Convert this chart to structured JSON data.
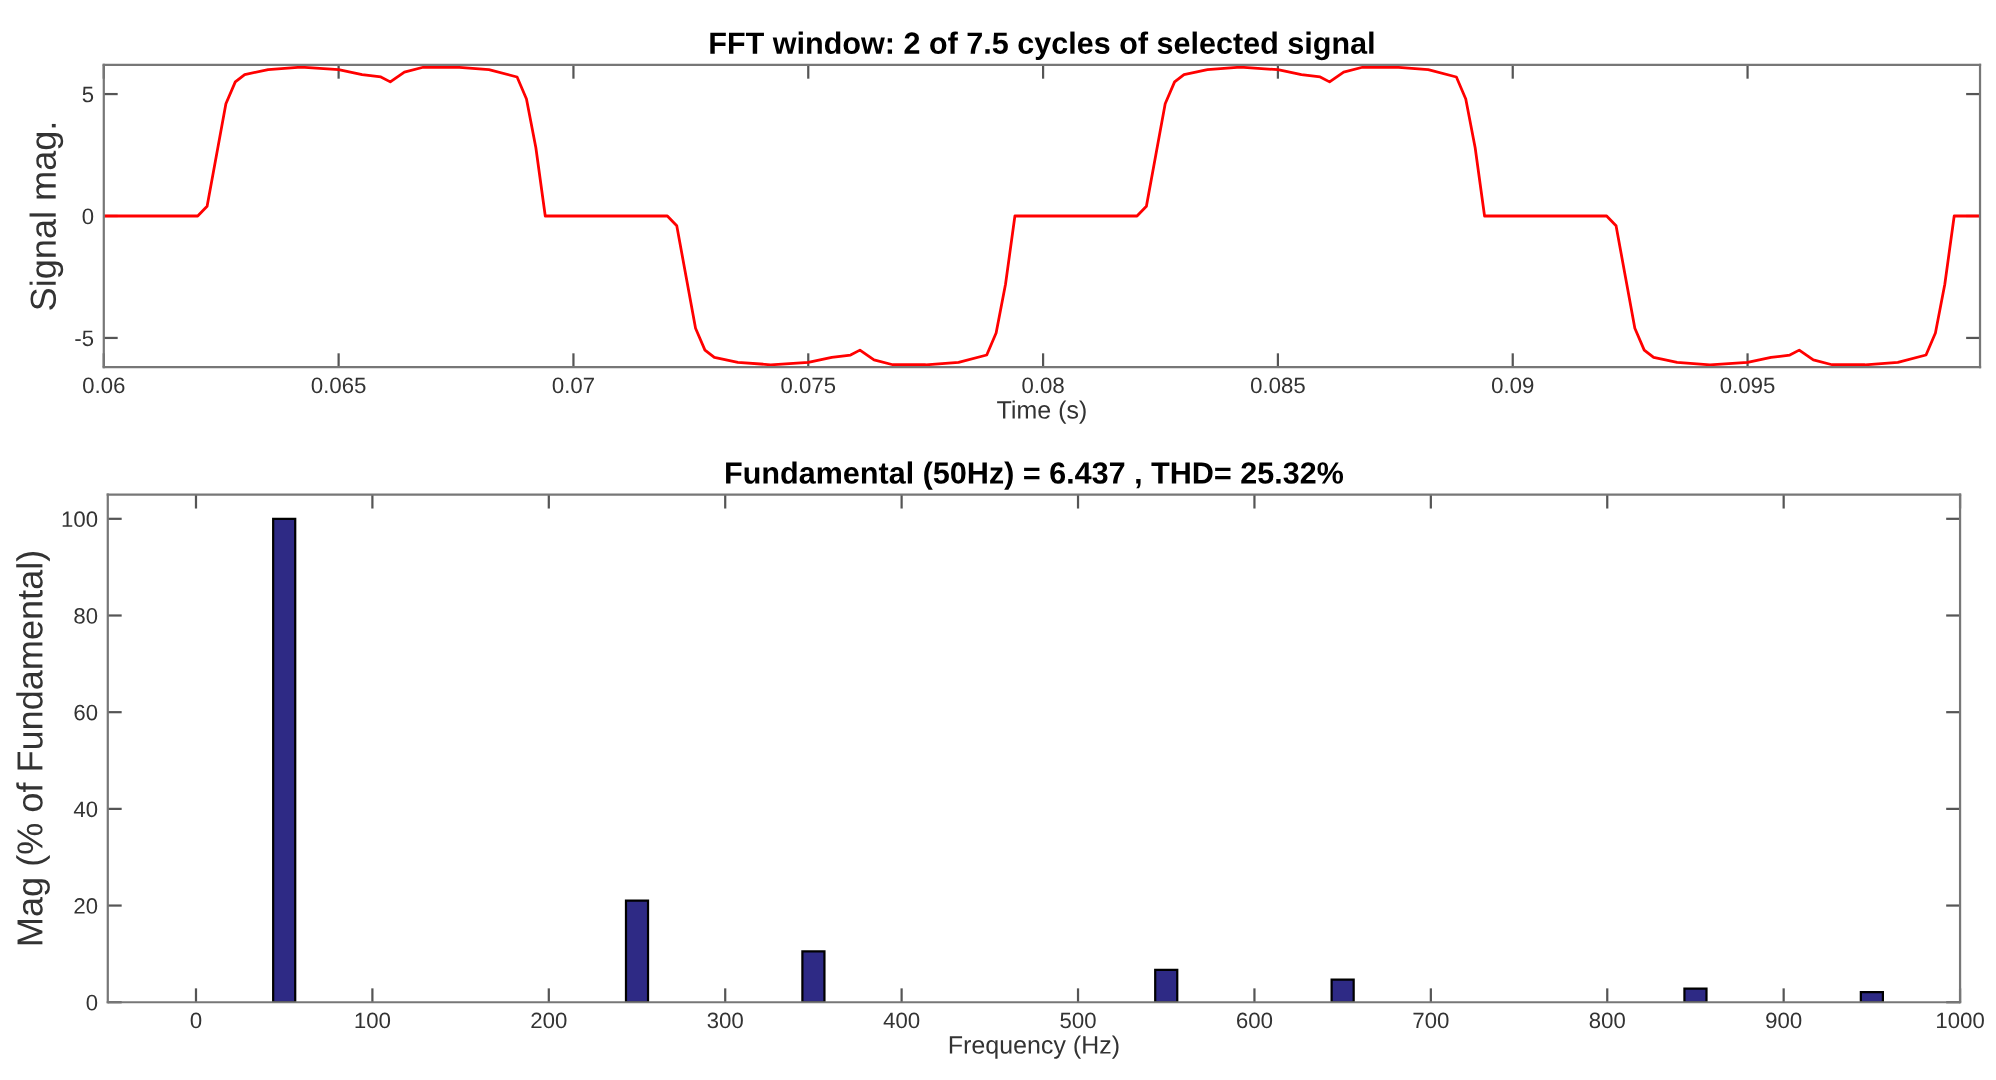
{
  "chart_data": [
    {
      "type": "line",
      "title": "FFT window: 2 of 7.5 cycles of selected signal",
      "xlabel": "Time (s)",
      "ylabel": "Signal mag.",
      "xlim": [
        0.06,
        0.09995
      ],
      "ylim": [
        -6.2,
        6.2
      ],
      "xticks": [
        0.06,
        0.065,
        0.07,
        0.075,
        0.08,
        0.085,
        0.09,
        0.095
      ],
      "yticks": [
        -5,
        0,
        5
      ],
      "grid": false,
      "series": [
        {
          "color": "#ff0000",
          "x": [
            0.06,
            0.062,
            0.0622,
            0.0624,
            0.0626,
            0.0628,
            0.063,
            0.0635,
            0.0642,
            0.065,
            0.0655,
            0.0659,
            0.0661,
            0.0664,
            0.0668,
            0.0675,
            0.0682,
            0.0688,
            0.069,
            0.0692,
            0.0694,
            0.072,
            0.0722,
            0.0724,
            0.0726,
            0.0728,
            0.073,
            0.0735,
            0.0742,
            0.075,
            0.0755,
            0.0759,
            0.0761,
            0.0764,
            0.0768,
            0.0775,
            0.0782,
            0.0788,
            0.079,
            0.0792,
            0.0794,
            0.082,
            0.0822,
            0.0824,
            0.0826,
            0.0828,
            0.083,
            0.0835,
            0.0842,
            0.085,
            0.0855,
            0.0859,
            0.0861,
            0.0864,
            0.0868,
            0.0875,
            0.0882,
            0.0888,
            0.089,
            0.0892,
            0.0894,
            0.092,
            0.0922,
            0.0924,
            0.0926,
            0.0928,
            0.093,
            0.0935,
            0.0942,
            0.095,
            0.0955,
            0.0959,
            0.0961,
            0.0964,
            0.0968,
            0.0975,
            0.0982,
            0.0988,
            0.099,
            0.0992,
            0.0994,
            0.09995
          ],
          "values": [
            0,
            0,
            0.4,
            2.5,
            4.6,
            5.5,
            5.8,
            6.0,
            6.1,
            6.0,
            5.8,
            5.7,
            5.5,
            5.9,
            6.1,
            6.1,
            6.0,
            5.7,
            4.8,
            2.8,
            0,
            0,
            -0.4,
            -2.5,
            -4.6,
            -5.5,
            -5.8,
            -6.0,
            -6.1,
            -6.0,
            -5.8,
            -5.7,
            -5.5,
            -5.9,
            -6.1,
            -6.1,
            -6.0,
            -5.7,
            -4.8,
            -2.8,
            0,
            0,
            0.4,
            2.5,
            4.6,
            5.5,
            5.8,
            6.0,
            6.1,
            6.0,
            5.8,
            5.7,
            5.5,
            5.9,
            6.1,
            6.1,
            6.0,
            5.7,
            4.8,
            2.8,
            0,
            0,
            -0.4,
            -2.5,
            -4.6,
            -5.5,
            -5.8,
            -6.0,
            -6.1,
            -6.0,
            -5.8,
            -5.7,
            -5.5,
            -5.9,
            -6.1,
            -6.1,
            -6.0,
            -5.7,
            -4.8,
            -2.8,
            0,
            0
          ]
        }
      ]
    },
    {
      "type": "bar",
      "title": "Fundamental (50Hz) = 6.437 , THD= 25.32%",
      "xlabel": "Frequency (Hz)",
      "ylabel": "Mag (% of Fundamental)",
      "xlim": [
        -50,
        1000
      ],
      "ylim": [
        0,
        105
      ],
      "xticks": [
        0,
        100,
        200,
        300,
        400,
        500,
        600,
        700,
        800,
        900,
        1000
      ],
      "yticks": [
        0,
        20,
        40,
        60,
        80,
        100
      ],
      "grid": false,
      "series": [
        {
          "color": "#2e2a85",
          "x": [
            50,
            250,
            350,
            550,
            650,
            850,
            950
          ],
          "values": [
            100,
            21,
            10.5,
            6.7,
            4.7,
            2.8,
            2.1
          ]
        }
      ]
    }
  ]
}
